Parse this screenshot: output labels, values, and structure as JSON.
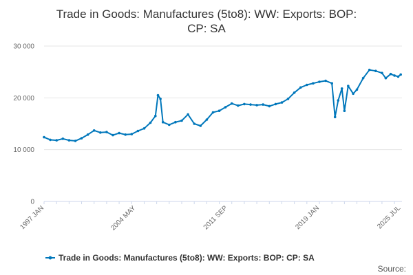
{
  "chart_data": {
    "type": "line",
    "title_lines": [
      "Trade in Goods: Manufactures (5to8): WW: Exports: BOP:",
      "CP: SA"
    ],
    "xlabel": "",
    "ylabel": "",
    "ylim": [
      0,
      30000
    ],
    "y_ticks": [
      0,
      10000,
      20000,
      30000
    ],
    "y_tick_labels": [
      "0",
      "10 000",
      "20 000",
      "30 000"
    ],
    "x_range": [
      1997.0,
      2025.6
    ],
    "x_tick_positions": [
      1997.0,
      2004.33,
      2011.67,
      2019.0,
      2025.5
    ],
    "x_tick_labels": [
      "1997 JAN",
      "2004 MAY",
      "2011 SEP",
      "2019 JAN",
      "2025 JUL"
    ],
    "grid": true,
    "legend_position": "bottom-center",
    "series": [
      {
        "name": "Trade in Goods: Manufactures (5to8): WW: Exports: BOP: CP: SA",
        "color": "#0077bb",
        "points": [
          [
            1997.0,
            12400
          ],
          [
            1997.5,
            11900
          ],
          [
            1998.0,
            11800
          ],
          [
            1998.5,
            12100
          ],
          [
            1999.0,
            11800
          ],
          [
            1999.5,
            11700
          ],
          [
            2000.0,
            12200
          ],
          [
            2000.5,
            12900
          ],
          [
            2001.0,
            13700
          ],
          [
            2001.5,
            13300
          ],
          [
            2002.0,
            13400
          ],
          [
            2002.5,
            12800
          ],
          [
            2003.0,
            13200
          ],
          [
            2003.5,
            12900
          ],
          [
            2004.0,
            13000
          ],
          [
            2004.5,
            13600
          ],
          [
            2005.0,
            14100
          ],
          [
            2005.5,
            15200
          ],
          [
            2005.9,
            16500
          ],
          [
            2006.1,
            20500
          ],
          [
            2006.3,
            19800
          ],
          [
            2006.5,
            15300
          ],
          [
            2007.0,
            14800
          ],
          [
            2007.5,
            15300
          ],
          [
            2008.0,
            15600
          ],
          [
            2008.5,
            16800
          ],
          [
            2009.0,
            15000
          ],
          [
            2009.5,
            14600
          ],
          [
            2010.0,
            15800
          ],
          [
            2010.5,
            17200
          ],
          [
            2011.0,
            17500
          ],
          [
            2011.5,
            18200
          ],
          [
            2012.0,
            18900
          ],
          [
            2012.5,
            18500
          ],
          [
            2013.0,
            18800
          ],
          [
            2013.5,
            18700
          ],
          [
            2014.0,
            18600
          ],
          [
            2014.5,
            18700
          ],
          [
            2015.0,
            18400
          ],
          [
            2015.5,
            18800
          ],
          [
            2016.0,
            19100
          ],
          [
            2016.5,
            19800
          ],
          [
            2017.0,
            21000
          ],
          [
            2017.5,
            22000
          ],
          [
            2018.0,
            22500
          ],
          [
            2018.5,
            22800
          ],
          [
            2019.0,
            23100
          ],
          [
            2019.5,
            23300
          ],
          [
            2020.0,
            22800
          ],
          [
            2020.25,
            16300
          ],
          [
            2020.5,
            19500
          ],
          [
            2020.8,
            21800
          ],
          [
            2021.0,
            17500
          ],
          [
            2021.3,
            22300
          ],
          [
            2021.7,
            20800
          ],
          [
            2022.0,
            21600
          ],
          [
            2022.5,
            23800
          ],
          [
            2023.0,
            25400
          ],
          [
            2023.5,
            25200
          ],
          [
            2024.0,
            24800
          ],
          [
            2024.3,
            23800
          ],
          [
            2024.7,
            24600
          ],
          [
            2025.0,
            24300
          ],
          [
            2025.3,
            24100
          ],
          [
            2025.5,
            24500
          ]
        ]
      }
    ],
    "credit": "Source:"
  }
}
